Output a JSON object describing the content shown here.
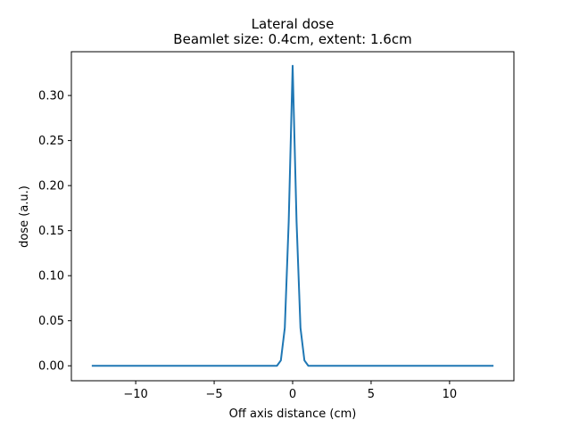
{
  "chart_data": {
    "type": "line",
    "title": "Lateral dose",
    "subtitle": "Beamlet size: 0.4cm, extent: 1.6cm",
    "xlabel": "Off axis distance (cm)",
    "ylabel": "dose (a.u.)",
    "xlim": [
      -14.1,
      14.1
    ],
    "ylim": [
      -0.0166,
      0.3486
    ],
    "xticks": [
      -10,
      -5,
      0,
      5,
      10
    ],
    "xtick_labels": [
      "−10",
      "−5",
      "0",
      "5",
      "10"
    ],
    "yticks": [
      0.0,
      0.05,
      0.1,
      0.15,
      0.2,
      0.25,
      0.3
    ],
    "ytick_labels": [
      "0.00",
      "0.05",
      "0.10",
      "0.15",
      "0.20",
      "0.25",
      "0.30"
    ],
    "grid": false,
    "series": [
      {
        "color": "#1f77b4",
        "x": [
          -12.8,
          -1.0,
          -0.75,
          -0.5,
          -0.25,
          0.0,
          0.25,
          0.5,
          0.75,
          1.0,
          12.8
        ],
        "y": [
          0.0,
          0.0,
          0.006,
          0.042,
          0.16,
          0.333,
          0.16,
          0.042,
          0.006,
          0.0,
          0.0
        ]
      }
    ]
  }
}
